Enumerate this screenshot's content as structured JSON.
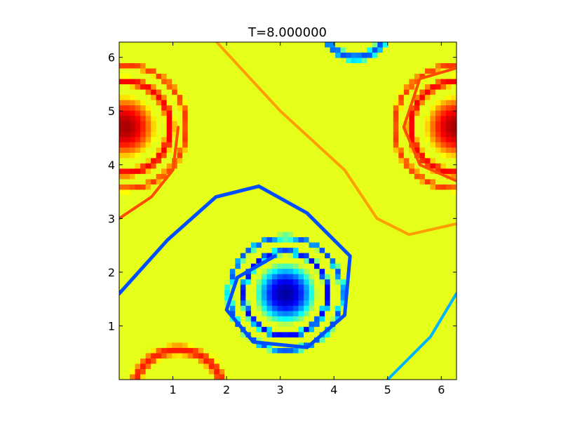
{
  "chart_data": {
    "type": "heatmap",
    "title": "T=8.000000",
    "xlabel": "",
    "ylabel": "",
    "xlim": [
      0.0,
      6.283185
    ],
    "ylim": [
      0.0,
      6.283185
    ],
    "x_ticks": [
      1,
      2,
      3,
      4,
      5,
      6
    ],
    "y_ticks": [
      1,
      2,
      3,
      4,
      5,
      6
    ],
    "x_tick_labels": [
      "1",
      "2",
      "3",
      "4",
      "5",
      "6"
    ],
    "y_tick_labels": [
      "1",
      "2",
      "3",
      "4",
      "5",
      "6"
    ],
    "colormap": "jet",
    "background_value": 0.6,
    "grid": false,
    "features": [
      {
        "kind": "blob",
        "cx": 3.1,
        "cy": 1.6,
        "r": 0.6,
        "value": 0.03
      },
      {
        "kind": "ring",
        "cx": 3.1,
        "cy": 1.6,
        "r": 0.78,
        "width": 0.07,
        "value": 0.12
      },
      {
        "kind": "ring",
        "cx": 3.1,
        "cy": 1.6,
        "r": 1.05,
        "width": 0.06,
        "value": 0.2
      },
      {
        "kind": "blob",
        "cx": 0.1,
        "cy": 4.7,
        "r": 0.6,
        "value": 0.96
      },
      {
        "kind": "ring",
        "cx": 0.1,
        "cy": 4.7,
        "r": 0.85,
        "width": 0.1,
        "value": 0.88
      },
      {
        "kind": "ring",
        "cx": 0.1,
        "cy": 4.7,
        "r": 1.15,
        "width": 0.07,
        "value": 0.82
      },
      {
        "kind": "blob",
        "cx": 6.28,
        "cy": 4.7,
        "r": 0.6,
        "value": 0.96
      },
      {
        "kind": "ring",
        "cx": 6.28,
        "cy": 4.7,
        "r": 0.85,
        "width": 0.1,
        "value": 0.88
      },
      {
        "kind": "ring",
        "cx": 6.28,
        "cy": 4.7,
        "r": 1.15,
        "width": 0.07,
        "value": 0.82
      },
      {
        "kind": "ring",
        "cx": 1.1,
        "cy": -0.3,
        "r": 0.85,
        "width": 0.12,
        "value": 0.85
      },
      {
        "kind": "ring",
        "cx": 4.4,
        "cy": 6.6,
        "r": 0.6,
        "width": 0.1,
        "value": 0.2
      }
    ]
  }
}
